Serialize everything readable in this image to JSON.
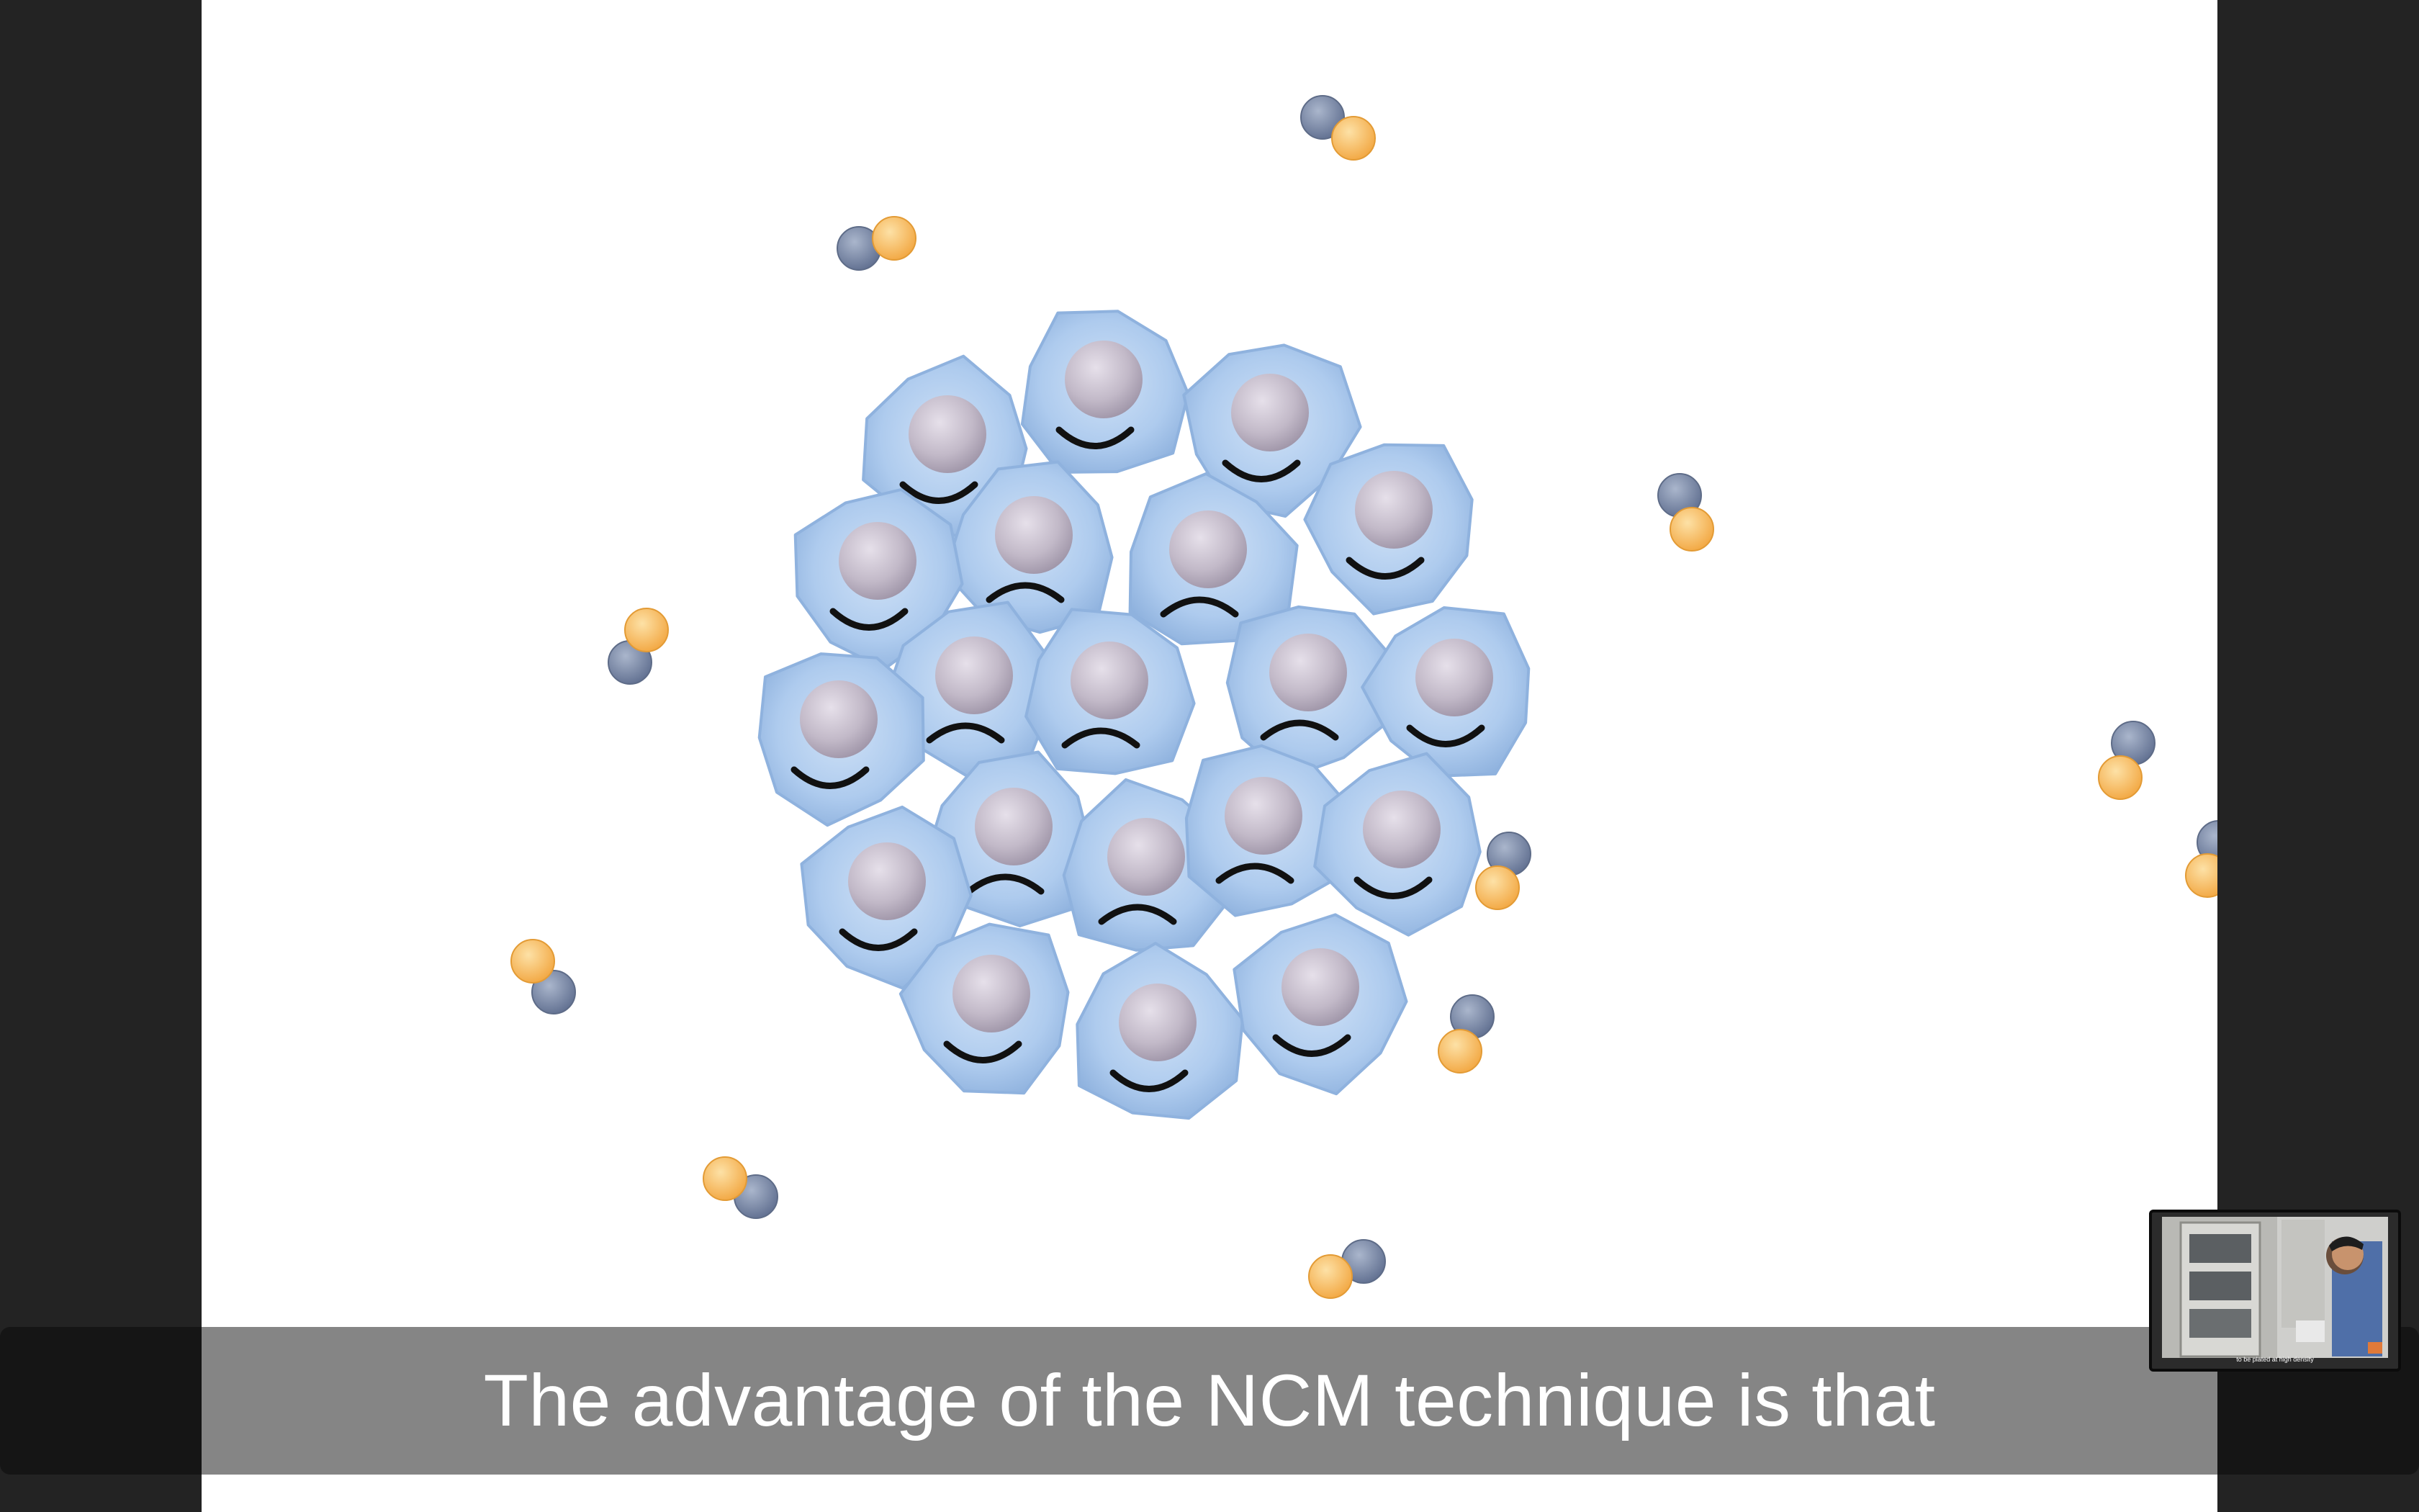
{
  "caption": {
    "text": "The advantage of the NCM technique is that"
  },
  "pip": {
    "caption": "to be plated at high density"
  },
  "colors": {
    "background": "#232323",
    "video_background": "#ffffff",
    "caption_bar": "#858585",
    "cell_fill": "#a9c8ec",
    "cell_edge": "#8fb2de",
    "nucleus": "#c6bfcb",
    "molecule_blue": "#7b8aa8",
    "molecule_orange": "#f6b85c"
  },
  "icons": {
    "molecule": "diatomic-molecule-icon",
    "cell": "cell-icon"
  }
}
